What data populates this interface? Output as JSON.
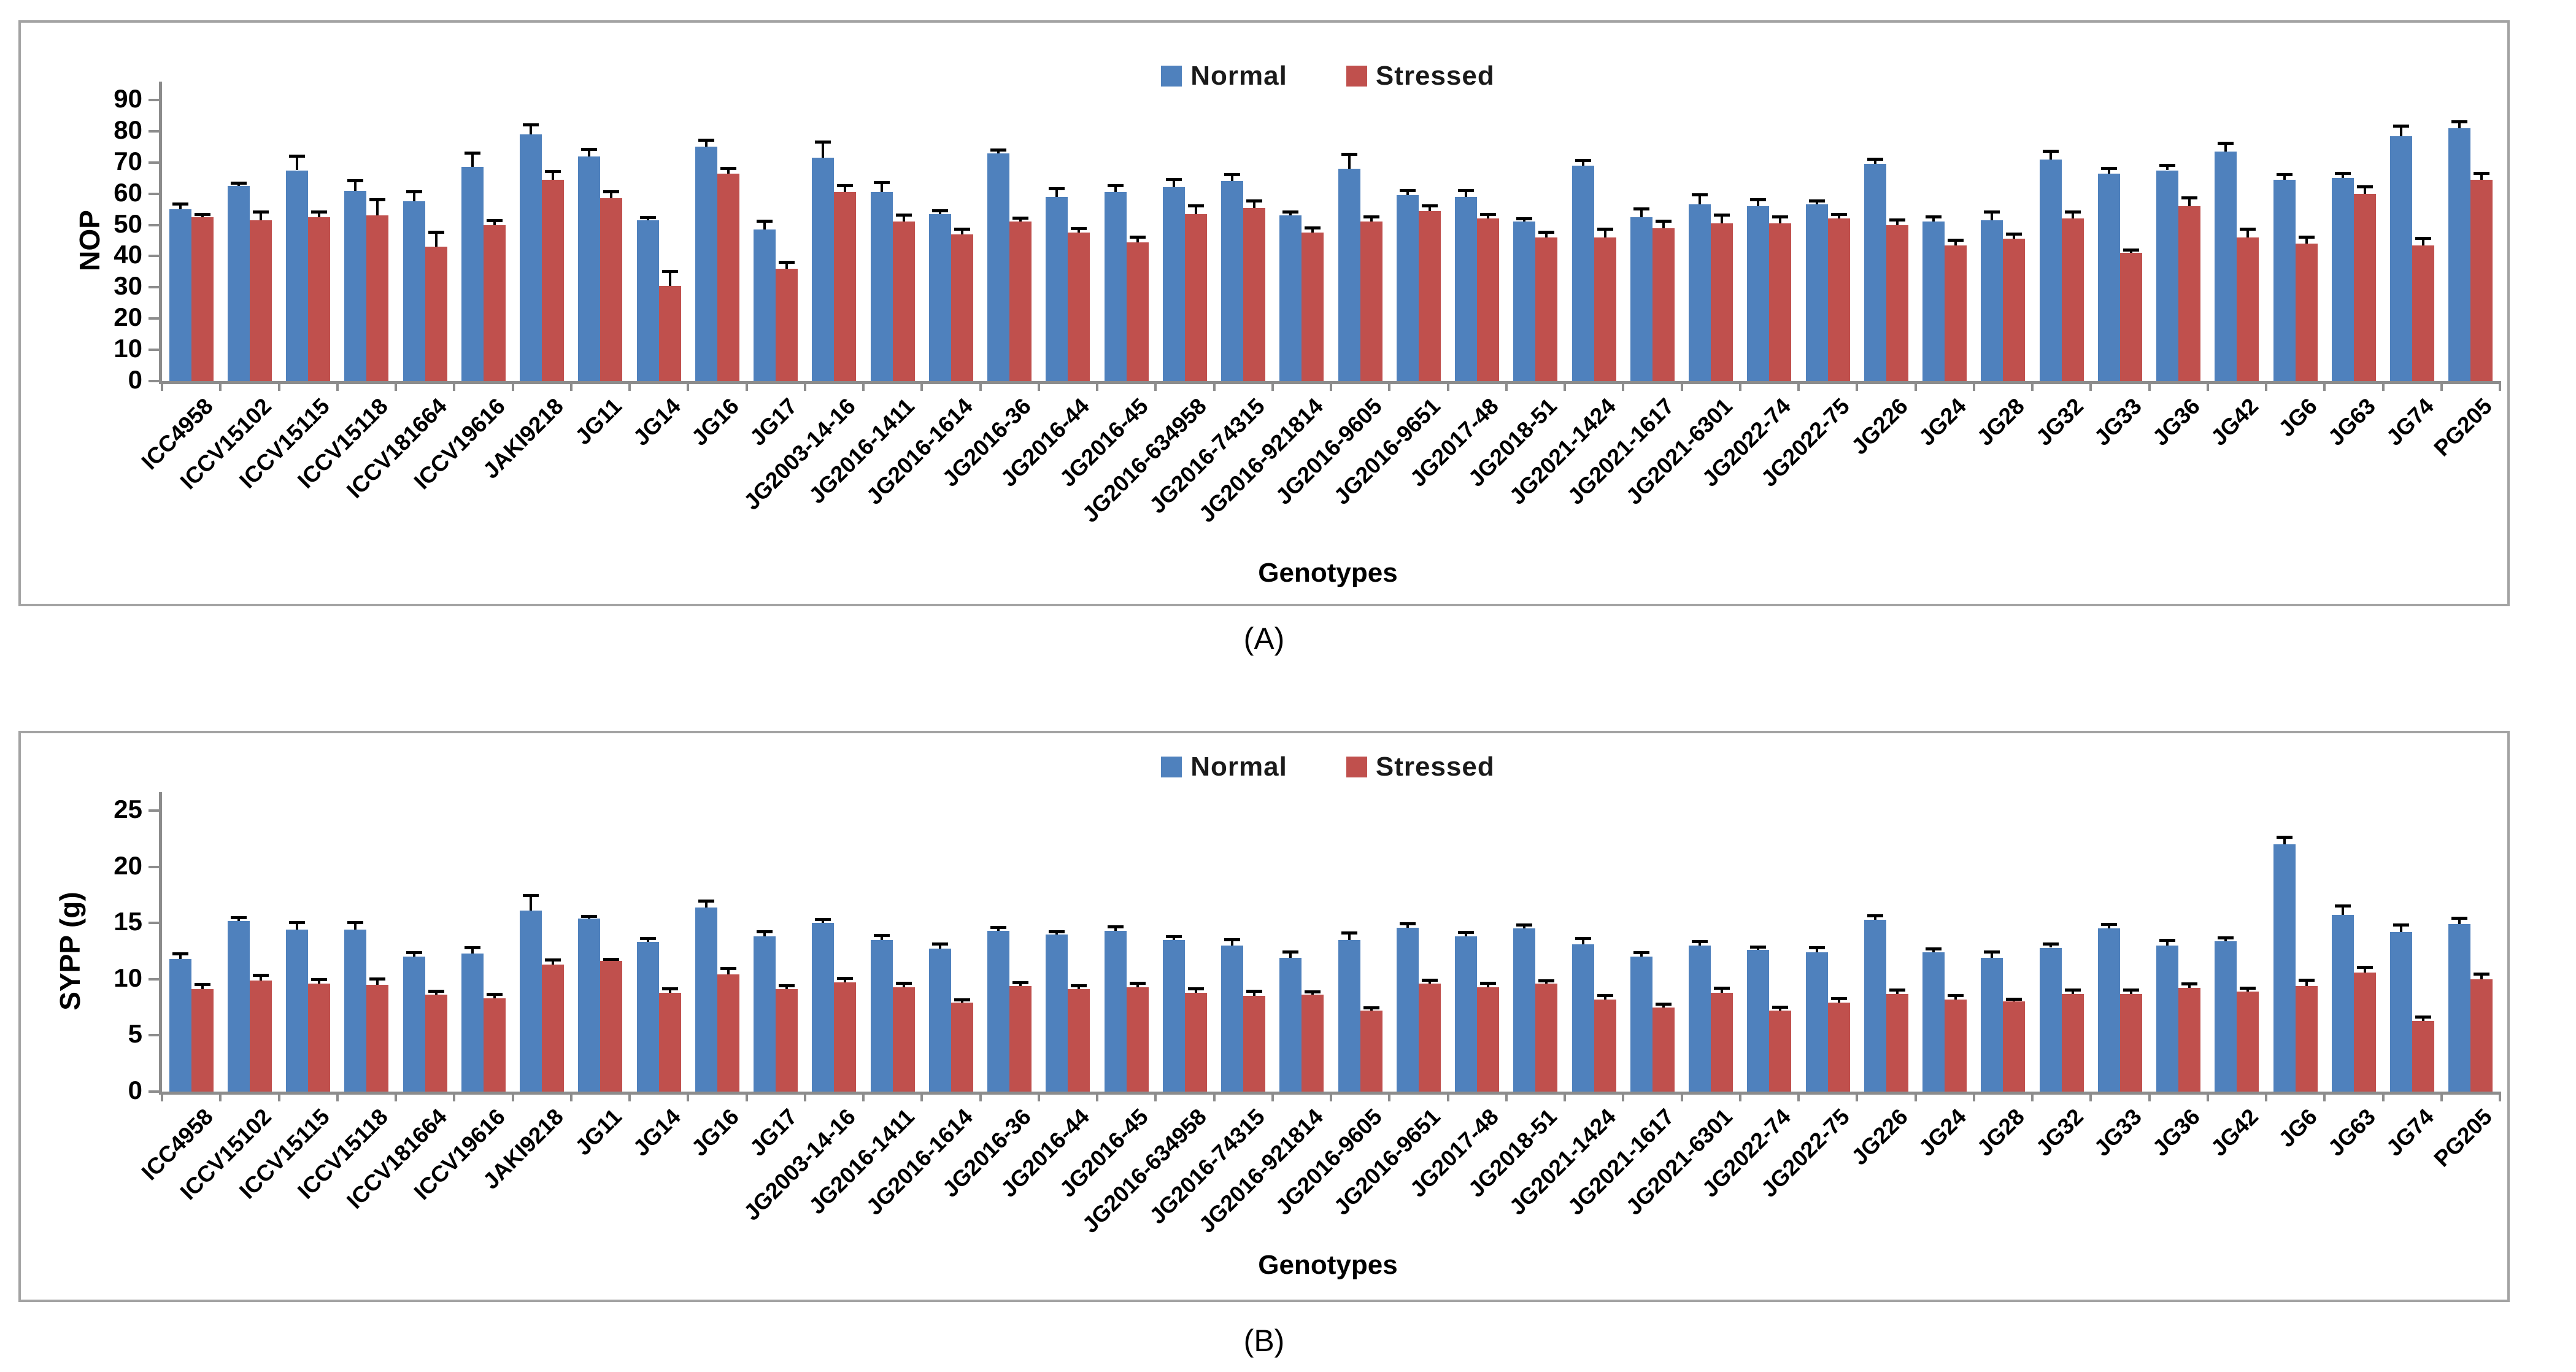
{
  "colors": {
    "normal": "#4f81bd",
    "stressed": "#c0504d",
    "axis": "#8c8c8c",
    "panel_border": "#a3a3a3",
    "error_bar": "#000000"
  },
  "captions": {
    "panel_a": "(A)",
    "panel_b": "(B)"
  },
  "genotypes": [
    "ICC4958",
    "ICCV15102",
    "ICCV15115",
    "ICCV15118",
    "ICCV181664",
    "ICCV19616",
    "JAKI9218",
    "JG11",
    "JG14",
    "JG16",
    "JG17",
    "JG2003-14-16",
    "JG2016-1411",
    "JG2016-1614",
    "JG2016-36",
    "JG2016-44",
    "JG2016-45",
    "JG2016-634958",
    "JG2016-74315",
    "JG2016-921814",
    "JG2016-9605",
    "JG2016-9651",
    "JG2017-48",
    "JG2018-51",
    "JG2021-1424",
    "JG2021-1617",
    "JG2021-6301",
    "JG2022-74",
    "JG2022-75",
    "JG226",
    "JG24",
    "JG28",
    "JG32",
    "JG33",
    "JG36",
    "JG42",
    "JG6",
    "JG63",
    "JG74",
    "PG205"
  ],
  "chart_data": [
    {
      "type": "bar",
      "title": "(A)",
      "xlabel": "Genotypes",
      "ylabel": "NOP",
      "ylim": [
        0,
        90
      ],
      "y_step": 10,
      "grid": false,
      "legend_position": "top-center",
      "error_bars": "upper",
      "categories": [
        "ICC4958",
        "ICCV15102",
        "ICCV15115",
        "ICCV15118",
        "ICCV181664",
        "ICCV19616",
        "JAKI9218",
        "JG11",
        "JG14",
        "JG16",
        "JG17",
        "JG2003-14-16",
        "JG2016-1411",
        "JG2016-1614",
        "JG2016-36",
        "JG2016-44",
        "JG2016-45",
        "JG2016-634958",
        "JG2016-74315",
        "JG2016-921814",
        "JG2016-9605",
        "JG2016-9651",
        "JG2017-48",
        "JG2018-51",
        "JG2021-1424",
        "JG2021-1617",
        "JG2021-6301",
        "JG2022-74",
        "JG2022-75",
        "JG226",
        "JG24",
        "JG28",
        "JG32",
        "JG33",
        "JG36",
        "JG42",
        "JG6",
        "JG63",
        "JG74",
        "PG205"
      ],
      "series": [
        {
          "name": "Normal",
          "color": "#4f81bd",
          "values": [
            55,
            62.5,
            67.5,
            61,
            57.5,
            68.5,
            79,
            72,
            51.5,
            75,
            48.5,
            71.5,
            60.5,
            53.5,
            73,
            59,
            60.5,
            62,
            64,
            53,
            68,
            59.5,
            59,
            51,
            69,
            52.5,
            56.5,
            56,
            56.5,
            69.5,
            51,
            51.5,
            71,
            66.5,
            67.5,
            73.5,
            64.5,
            65,
            78.5,
            81
          ],
          "errors": [
            1.5,
            0.8,
            4.5,
            3,
            3,
            4.5,
            3,
            2,
            0.8,
            2,
            2.5,
            5,
            3,
            1,
            0.8,
            2.5,
            2,
            2.5,
            2,
            1,
            4.5,
            1.5,
            2,
            0.8,
            1.5,
            2.5,
            3,
            2,
            1,
            1.5,
            1.5,
            2.5,
            2.5,
            1.5,
            1.5,
            2.5,
            1.5,
            1.5,
            3,
            2
          ]
        },
        {
          "name": "Stressed",
          "color": "#c0504d",
          "values": [
            52.5,
            51.5,
            52.5,
            53,
            43,
            50,
            64.5,
            58.5,
            30.5,
            66.5,
            36,
            60.5,
            51,
            47,
            51,
            47.5,
            44.5,
            53.5,
            55.5,
            47.5,
            51,
            54.5,
            52,
            46,
            46,
            49,
            50.5,
            50.5,
            52,
            50,
            43.5,
            45.5,
            52,
            41,
            56,
            46,
            44,
            60,
            43.5,
            64.5
          ],
          "errors": [
            0.8,
            2.5,
            1.5,
            5,
            4.5,
            1.2,
            2.5,
            2,
            4.5,
            1.5,
            2,
            2,
            2,
            1.5,
            1,
            1.2,
            1.5,
            2.5,
            2,
            1.5,
            1.5,
            1.5,
            1.2,
            1.5,
            2.5,
            2,
            2.5,
            2,
            1.2,
            1.5,
            1.5,
            1.5,
            2,
            0.8,
            2.5,
            2.5,
            2,
            2,
            2,
            2
          ]
        }
      ]
    },
    {
      "type": "bar",
      "title": "(B)",
      "xlabel": "Genotypes",
      "ylabel": "SYPP (g)",
      "ylim": [
        0,
        25
      ],
      "y_step": 5,
      "grid": false,
      "legend_position": "top-center",
      "error_bars": "upper",
      "categories": [
        "ICC4958",
        "ICCV15102",
        "ICCV15115",
        "ICCV15118",
        "ICCV181664",
        "ICCV19616",
        "JAKI9218",
        "JG11",
        "JG14",
        "JG16",
        "JG17",
        "JG2003-14-16",
        "JG2016-1411",
        "JG2016-1614",
        "JG2016-36",
        "JG2016-44",
        "JG2016-45",
        "JG2016-634958",
        "JG2016-74315",
        "JG2016-921814",
        "JG2016-9605",
        "JG2016-9651",
        "JG2017-48",
        "JG2018-51",
        "JG2021-1424",
        "JG2021-1617",
        "JG2021-6301",
        "JG2022-74",
        "JG2022-75",
        "JG226",
        "JG24",
        "JG28",
        "JG32",
        "JG33",
        "JG36",
        "JG42",
        "JG6",
        "JG63",
        "JG74",
        "PG205"
      ],
      "series": [
        {
          "name": "Normal",
          "color": "#4f81bd",
          "values": [
            11.8,
            15.2,
            14.4,
            14.4,
            12,
            12.3,
            16.1,
            15.4,
            13.3,
            16.4,
            13.8,
            15,
            13.5,
            12.7,
            14.3,
            14,
            14.3,
            13.5,
            13,
            11.9,
            13.5,
            14.6,
            13.8,
            14.5,
            13.1,
            12,
            13,
            12.6,
            12.4,
            15.3,
            12.4,
            11.9,
            12.8,
            14.5,
            13,
            13.4,
            22,
            15.7,
            14.2,
            14.9
          ],
          "errors": [
            0.4,
            0.25,
            0.6,
            0.6,
            0.35,
            0.45,
            1.3,
            0.15,
            0.3,
            0.5,
            0.4,
            0.3,
            0.35,
            0.4,
            0.3,
            0.2,
            0.35,
            0.25,
            0.5,
            0.5,
            0.6,
            0.3,
            0.35,
            0.3,
            0.5,
            0.35,
            0.3,
            0.25,
            0.35,
            0.3,
            0.25,
            0.5,
            0.3,
            0.35,
            0.45,
            0.25,
            0.6,
            0.8,
            0.6,
            0.5
          ]
        },
        {
          "name": "Stressed",
          "color": "#c0504d",
          "values": [
            9.1,
            9.9,
            9.6,
            9.5,
            8.6,
            8.3,
            11.3,
            11.6,
            8.8,
            10.4,
            9.1,
            9.7,
            9.3,
            7.9,
            9.4,
            9.1,
            9.3,
            8.8,
            8.5,
            8.6,
            7.2,
            9.6,
            9.3,
            9.6,
            8.2,
            7.5,
            8.8,
            7.2,
            7.9,
            8.7,
            8.2,
            8,
            8.7,
            8.7,
            9.2,
            8.9,
            9.4,
            10.6,
            6.3,
            10
          ],
          "errors": [
            0.4,
            0.4,
            0.35,
            0.5,
            0.3,
            0.3,
            0.4,
            0.15,
            0.3,
            0.5,
            0.3,
            0.35,
            0.3,
            0.25,
            0.25,
            0.3,
            0.3,
            0.3,
            0.4,
            0.25,
            0.2,
            0.3,
            0.3,
            0.25,
            0.3,
            0.25,
            0.35,
            0.3,
            0.35,
            0.3,
            0.3,
            0.2,
            0.3,
            0.3,
            0.35,
            0.25,
            0.5,
            0.4,
            0.3,
            0.4
          ]
        }
      ]
    }
  ]
}
